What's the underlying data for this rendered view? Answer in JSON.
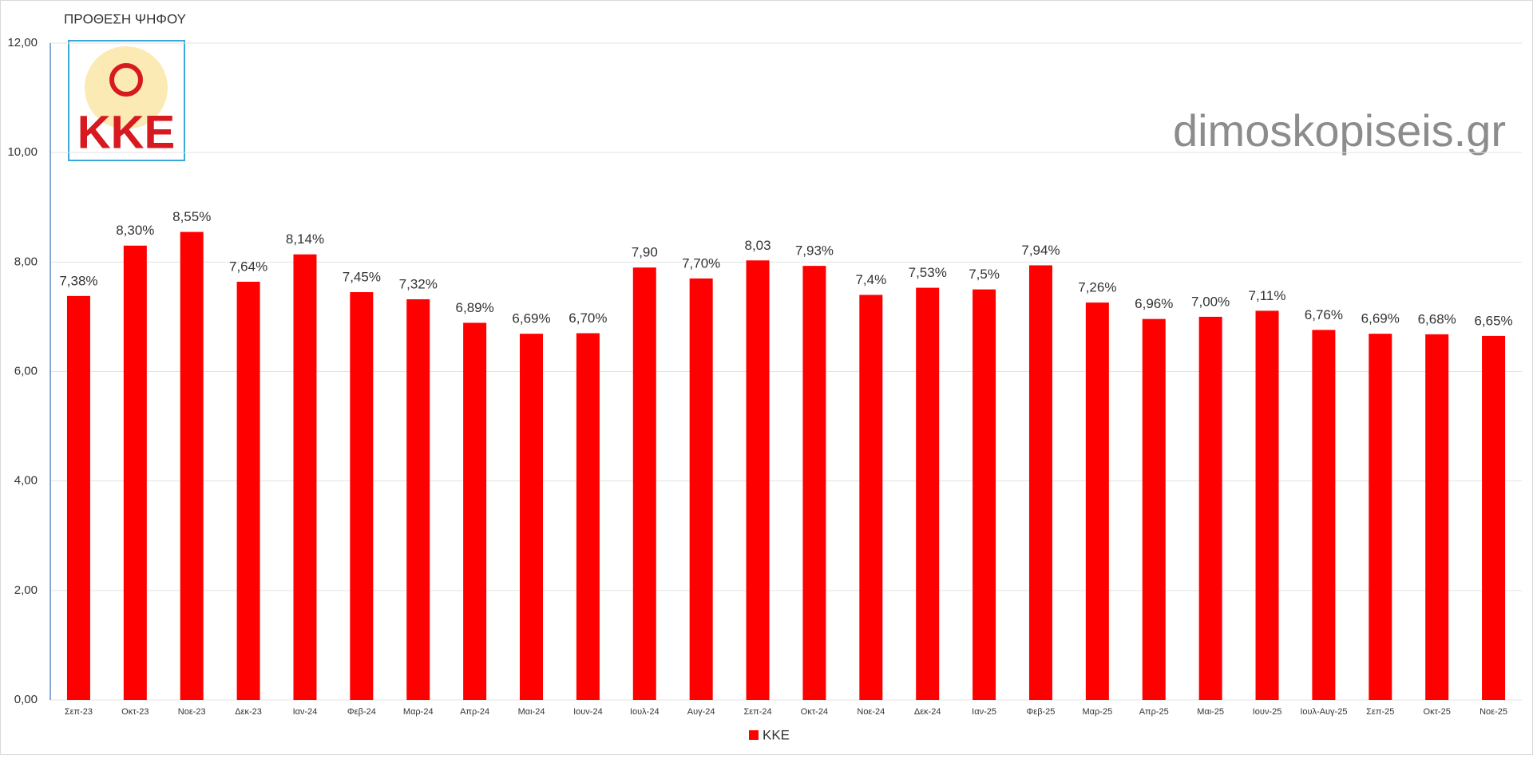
{
  "chart_data": {
    "type": "bar",
    "title": "ΠΡΟΘΕΣΗ ΨΗΦΟΥ",
    "watermark": "dimoskopiseis.gr",
    "logo": "KKE",
    "categories": [
      "Σεπ-23",
      "Οκτ-23",
      "Νοε-23",
      "Δεκ-23",
      "Ιαν-24",
      "Φεβ-24",
      "Μαρ-24",
      "Απρ-24",
      "Μαι-24",
      "Ιουν-24",
      "Ιουλ-24",
      "Αυγ-24",
      "Σεπ-24",
      "Οκτ-24",
      "Νοε-24",
      "Δεκ-24",
      "Ιαν-25",
      "Φεβ-25",
      "Μαρ-25",
      "Απρ-25",
      "Μαι-25",
      "Ιουν-25",
      "Ιουλ-Αυγ-25",
      "Σεπ-25",
      "Οκτ-25",
      "Νοε-25"
    ],
    "series": [
      {
        "name": "KKE",
        "color": "#ff0000",
        "values": [
          7.38,
          8.3,
          8.55,
          7.64,
          8.14,
          7.45,
          7.32,
          6.89,
          6.69,
          6.7,
          7.9,
          7.7,
          8.03,
          7.93,
          7.4,
          7.53,
          7.5,
          7.94,
          7.26,
          6.96,
          7.0,
          7.11,
          6.76,
          6.69,
          6.68,
          6.65
        ],
        "value_labels": [
          "7,38%",
          "8,30%",
          "8,55%",
          "7,64%",
          "8,14%",
          "7,45%",
          "7,32%",
          "6,89%",
          "6,69%",
          "6,70%",
          "7,90",
          "7,70%",
          "8,03",
          "7,93%",
          "7,4%",
          "7,53%",
          "7,5%",
          "7,94%",
          "7,26%",
          "6,96%",
          "7,00%",
          "7,11%",
          "6,76%",
          "6,69%",
          "6,68%",
          "6,65%"
        ]
      }
    ],
    "ylim": [
      0,
      12
    ],
    "yticks": [
      {
        "value": 0,
        "label": "0,00"
      },
      {
        "value": 2,
        "label": "2,00"
      },
      {
        "value": 4,
        "label": "4,00"
      },
      {
        "value": 6,
        "label": "6,00"
      },
      {
        "value": 8,
        "label": "8,00"
      },
      {
        "value": 10,
        "label": "10,00"
      },
      {
        "value": 12,
        "label": "12,00"
      }
    ],
    "grid": true,
    "legend": "bottom"
  }
}
